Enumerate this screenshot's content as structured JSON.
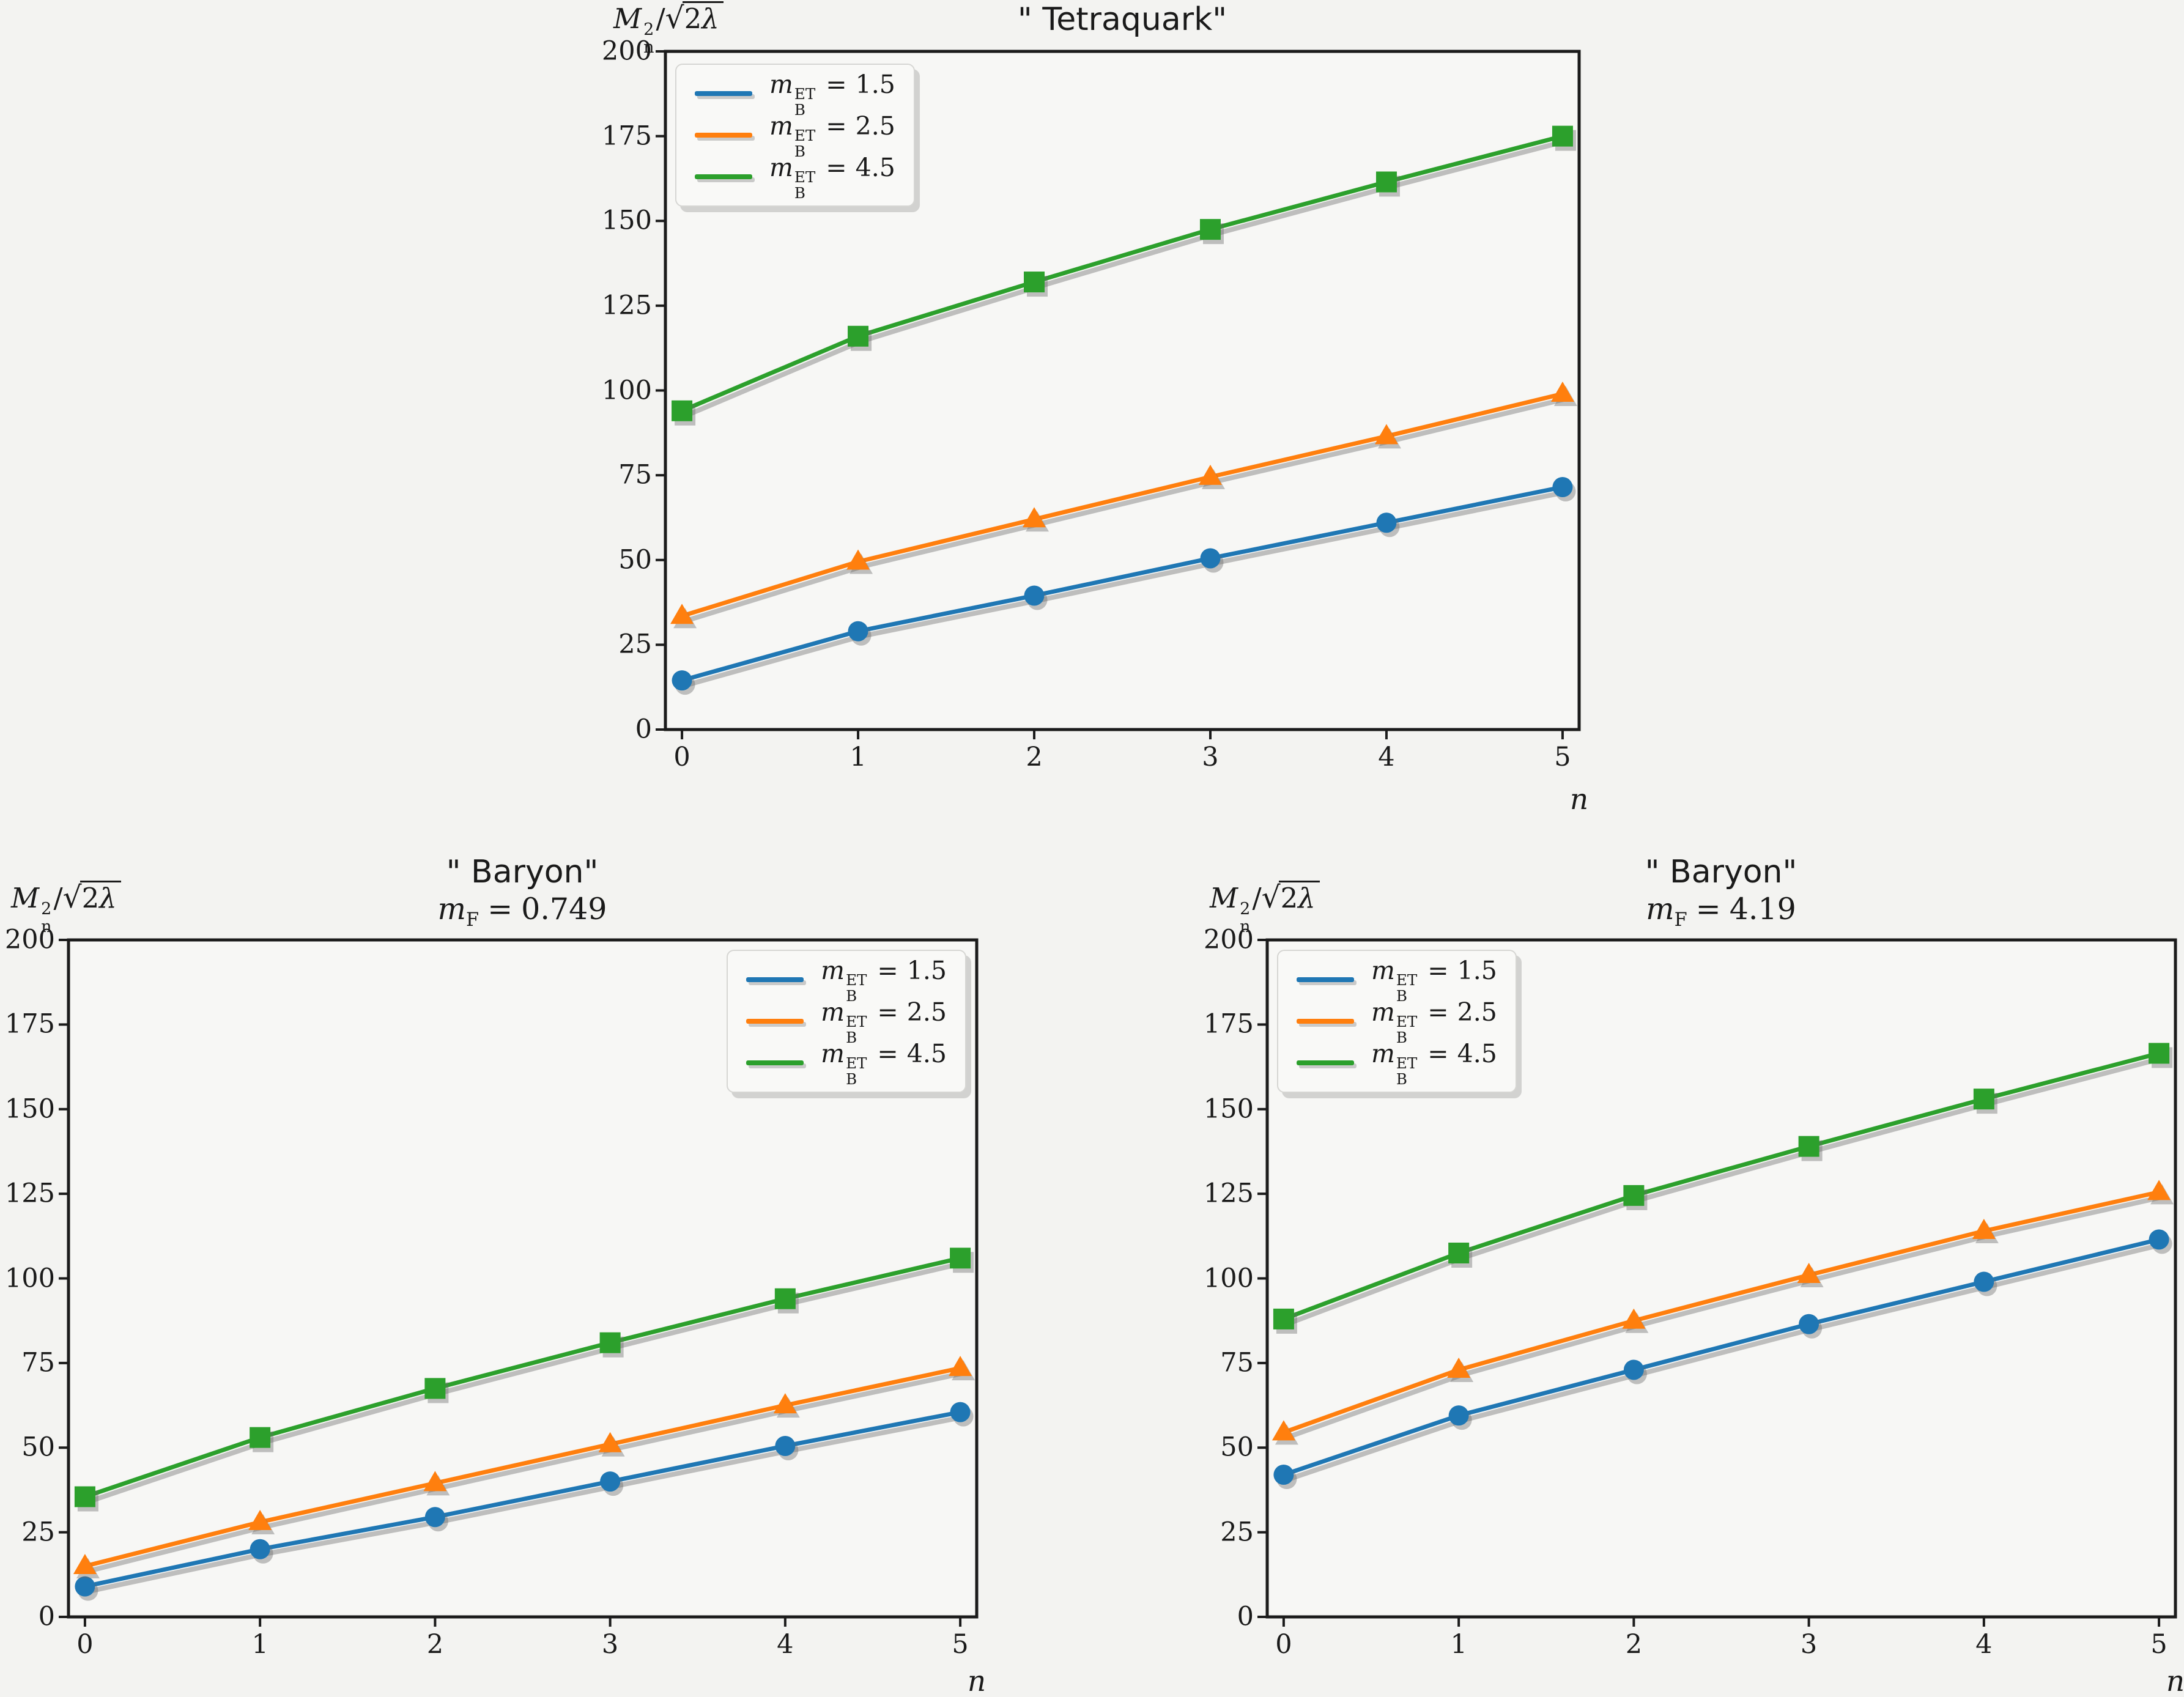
{
  "figure": {
    "background": "#f3f3f1",
    "axes_background": "#f7f7f5",
    "spine_color": "#1b1b1b",
    "tick_color": "#1b1b1b",
    "text_color": "#1a1a1a",
    "line_shadow_color": "rgba(105,105,105,0.40)"
  },
  "chart_data": [
    {
      "type": "line",
      "title": "\" Tetraquark\"",
      "subtitle": null,
      "ylabel": {
        "base": "M",
        "sup": "2",
        "sub": "n",
        "slash": "/",
        "sqrt": "√",
        "radicand_coef": "2",
        "radicand_sym": "λ"
      },
      "xlabel": "n",
      "xlim": [
        -0.094,
        5.094
      ],
      "ylim": [
        0,
        200
      ],
      "xticks": [
        0,
        1,
        2,
        3,
        4,
        5
      ],
      "yticks": [
        0,
        25,
        50,
        75,
        100,
        125,
        150,
        175,
        200
      ],
      "grid": false,
      "legend_loc": "upper left",
      "x": [
        0,
        1,
        2,
        3,
        4,
        5
      ],
      "series": [
        {
          "name": "m_B^ET = 1.5",
          "label": {
            "base": "m",
            "sup": "ET",
            "sub": "B",
            "eq": "=",
            "value": "1.5"
          },
          "color": "#1f77b4",
          "marker": "circle",
          "values": [
            14.5,
            29,
            39.5,
            50.5,
            61,
            71.5
          ]
        },
        {
          "name": "m_B^ET = 2.5",
          "label": {
            "base": "m",
            "sup": "ET",
            "sub": "B",
            "eq": "=",
            "value": "2.5"
          },
          "color": "#ff7f0e",
          "marker": "triangle",
          "values": [
            33.5,
            49.5,
            62,
            74.5,
            86.5,
            99
          ]
        },
        {
          "name": "m_B^ET = 4.5",
          "label": {
            "base": "m",
            "sup": "ET",
            "sub": "B",
            "eq": "=",
            "value": "4.5"
          },
          "color": "#2ca02c",
          "marker": "square",
          "values": [
            94,
            116,
            132,
            147.5,
            161.5,
            175
          ]
        }
      ]
    },
    {
      "type": "line",
      "title": "\" Baryon\"",
      "subtitle": {
        "base": "m",
        "sub": "F",
        "eq": "=",
        "value": "0.749"
      },
      "ylabel": {
        "base": "M",
        "sup": "2",
        "sub": "n",
        "slash": "/",
        "sqrt": "√",
        "radicand_coef": "2",
        "radicand_sym": "λ"
      },
      "xlabel": "n",
      "xlim": [
        -0.094,
        5.094
      ],
      "ylim": [
        0,
        200
      ],
      "xticks": [
        0,
        1,
        2,
        3,
        4,
        5
      ],
      "yticks": [
        0,
        25,
        50,
        75,
        100,
        125,
        150,
        175,
        200
      ],
      "grid": false,
      "legend_loc": "upper right",
      "x": [
        0,
        1,
        2,
        3,
        4,
        5
      ],
      "series": [
        {
          "name": "m_B^ET = 1.5",
          "label": {
            "base": "m",
            "sup": "ET",
            "sub": "B",
            "eq": "=",
            "value": "1.5"
          },
          "color": "#1f77b4",
          "marker": "circle",
          "values": [
            9,
            20,
            29.5,
            40,
            50.5,
            60.5
          ]
        },
        {
          "name": "m_B^ET = 2.5",
          "label": {
            "base": "m",
            "sup": "ET",
            "sub": "B",
            "eq": "=",
            "value": "2.5"
          },
          "color": "#ff7f0e",
          "marker": "triangle",
          "values": [
            15,
            28,
            39.5,
            51,
            62.5,
            73.5
          ]
        },
        {
          "name": "m_B^ET = 4.5",
          "label": {
            "base": "m",
            "sup": "ET",
            "sub": "B",
            "eq": "=",
            "value": "4.5"
          },
          "color": "#2ca02c",
          "marker": "square",
          "values": [
            35.5,
            53,
            67.5,
            81,
            94,
            106
          ]
        }
      ]
    },
    {
      "type": "line",
      "title": "\" Baryon\"",
      "subtitle": {
        "base": "m",
        "sub": "F",
        "eq": "=",
        "value": "4.19"
      },
      "ylabel": {
        "base": "M",
        "sup": "2",
        "sub": "n",
        "slash": "/",
        "sqrt": "√",
        "radicand_coef": "2",
        "radicand_sym": "λ"
      },
      "xlabel": "n",
      "xlim": [
        -0.094,
        5.094
      ],
      "ylim": [
        0,
        200
      ],
      "xticks": [
        0,
        1,
        2,
        3,
        4,
        5
      ],
      "yticks": [
        0,
        25,
        50,
        75,
        100,
        125,
        150,
        175,
        200
      ],
      "grid": false,
      "legend_loc": "upper left",
      "x": [
        0,
        1,
        2,
        3,
        4,
        5
      ],
      "series": [
        {
          "name": "m_B^ET = 1.5",
          "label": {
            "base": "m",
            "sup": "ET",
            "sub": "B",
            "eq": "=",
            "value": "1.5"
          },
          "color": "#1f77b4",
          "marker": "circle",
          "values": [
            42,
            59.5,
            73,
            86.5,
            99,
            111.5
          ]
        },
        {
          "name": "m_B^ET = 2.5",
          "label": {
            "base": "m",
            "sup": "ET",
            "sub": "B",
            "eq": "=",
            "value": "2.5"
          },
          "color": "#ff7f0e",
          "marker": "triangle",
          "values": [
            54.5,
            73,
            87.5,
            101,
            114,
            125.5
          ]
        },
        {
          "name": "m_B^ET = 4.5",
          "label": {
            "base": "m",
            "sup": "ET",
            "sub": "B",
            "eq": "=",
            "value": "4.5"
          },
          "color": "#2ca02c",
          "marker": "square",
          "values": [
            88,
            107.5,
            124.5,
            139,
            153,
            166.5
          ]
        }
      ]
    }
  ]
}
